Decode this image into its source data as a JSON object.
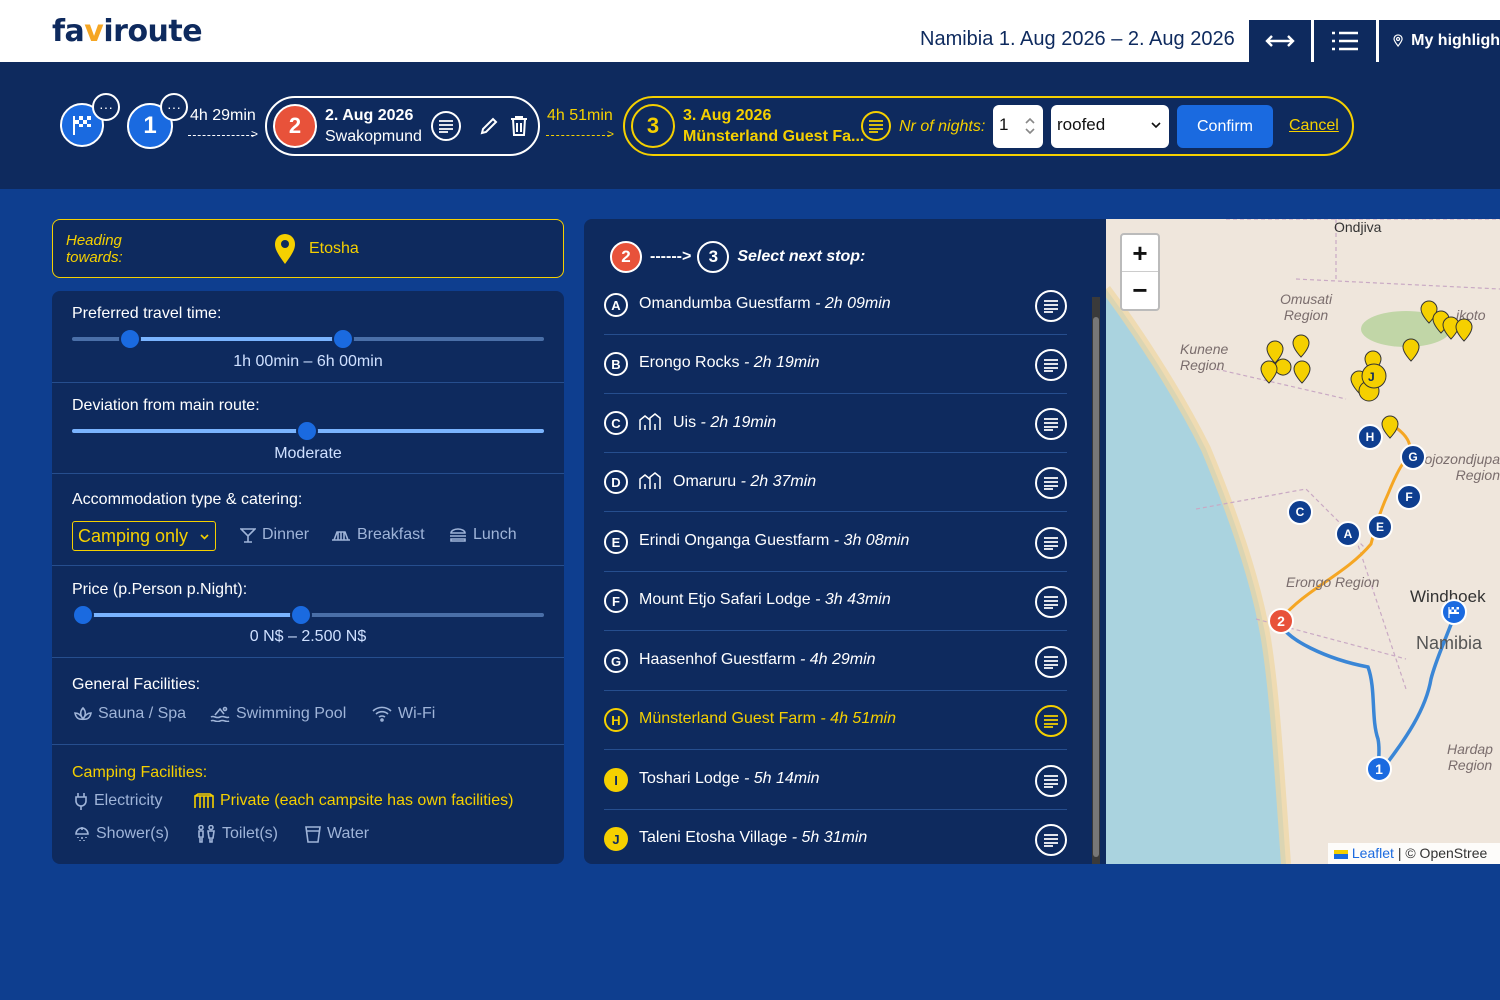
{
  "header": {
    "logo_pre": "fa",
    "logo_v": "v",
    "logo_post": "iroute",
    "trip_title": "Namibia 1. Aug 2026 – 2. Aug 2026",
    "highlights_label": "My highligh"
  },
  "route": {
    "stop1_num": "1",
    "dur_1_2": "4h 29min",
    "stop2": {
      "num": "2",
      "date": "2. Aug 2026",
      "place": "Swakopmund"
    },
    "dur_2_3": "4h 51min",
    "stop3": {
      "num": "3",
      "date": "3. Aug 2026",
      "place": "Münsterland Guest Fa..."
    },
    "nights_label": "Nr of nights:",
    "nights_value": "1",
    "room_type": "roofed",
    "confirm_label": "Confirm",
    "cancel_label": "Cancel"
  },
  "heading": {
    "label": "Heading towards:",
    "value": "Etosha"
  },
  "filters": {
    "travel_time": {
      "label": "Preferred travel time:",
      "value": "1h 00min – 6h 00min"
    },
    "deviation": {
      "label": "Deviation from main route:",
      "value": "Moderate"
    },
    "accommodation": {
      "label": "Accommodation type & catering:",
      "selected": "Camping only",
      "dinner": "Dinner",
      "breakfast": "Breakfast",
      "lunch": "Lunch"
    },
    "price": {
      "label": "Price (p.Person p.Night):",
      "value": "0 N$ – 2.500 N$"
    },
    "general": {
      "label": "General Facilities:",
      "sauna": "Sauna / Spa",
      "pool": "Swimming Pool",
      "wifi": "Wi-Fi"
    },
    "camping": {
      "label": "Camping Facilities:",
      "electricity": "Electricity",
      "private": "Private (each campsite has own facilities)",
      "shower": "Shower(s)",
      "toilet": "Toilet(s)",
      "water": "Water"
    }
  },
  "next_stop": {
    "from": "2",
    "arrow": "------>",
    "to": "3",
    "title": "Select next stop:",
    "items": [
      {
        "letter": "A",
        "name": "Omandumba Guestfarm",
        "dur": " - 2h 09min"
      },
      {
        "letter": "B",
        "name": "Erongo Rocks",
        "dur": " - 2h 19min"
      },
      {
        "letter": "C",
        "name": "Uis",
        "dur": " - 2h 19min"
      },
      {
        "letter": "D",
        "name": "Omaruru",
        "dur": " - 2h 37min"
      },
      {
        "letter": "E",
        "name": "Erindi Onganga Guestfarm",
        "dur": " - 3h 08min"
      },
      {
        "letter": "F",
        "name": "Mount Etjo Safari Lodge",
        "dur": " - 3h 43min"
      },
      {
        "letter": "G",
        "name": "Haasenhof Guestfarm",
        "dur": " - 4h 29min"
      },
      {
        "letter": "H",
        "name": "Münsterland Guest Farm",
        "dur": " - 4h 51min"
      },
      {
        "letter": "I",
        "name": "Toshari Lodge",
        "dur": " - 5h 14min"
      },
      {
        "letter": "J",
        "name": "Taleni Etosha Village",
        "dur": " - 5h 31min"
      }
    ]
  },
  "map": {
    "zoom_in": "+",
    "zoom_out": "−",
    "labels": {
      "ondjiva": "Ondjiva",
      "omusati": "Omusati Region",
      "kunene": "Kunene Region",
      "okoto": "ikoto",
      "otjozondjupa": "ojozondjupa Region",
      "erongo": "Erongo Region",
      "windhoek": "Windhoek",
      "namibia": "Namibia",
      "hardap": "Hardap Region"
    },
    "attribution_link": "Leaflet",
    "attribution_rest": " | © OpenStree"
  },
  "colors": {
    "navy": "#0e2a5e",
    "blue": "#0e3e8f",
    "accent": "#1a6ae0",
    "yellow": "#f5d000",
    "red": "#e8523a"
  }
}
